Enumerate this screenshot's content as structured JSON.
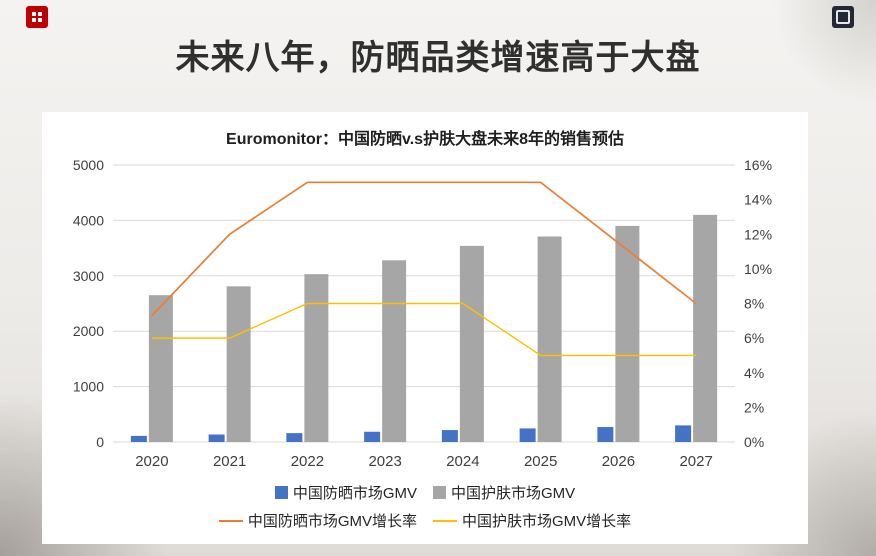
{
  "page": {
    "title": "未来八年，防晒品类增速高于大盘"
  },
  "logos": {
    "top_left_icon": "red-grid-logo-icon",
    "top_right_icon": "dark-square-logo-icon"
  },
  "chart_data": {
    "type": "combo-bar-line",
    "title": "Euromonitor：中国防晒v.s护肤大盘未来8年的销售预估",
    "categories": [
      "2020",
      "2021",
      "2022",
      "2023",
      "2024",
      "2025",
      "2026",
      "2027"
    ],
    "left_axis": {
      "min": 0,
      "max": 5000,
      "step": 1000,
      "ticks": [
        "0",
        "1000",
        "2000",
        "3000",
        "4000",
        "5000"
      ]
    },
    "right_axis": {
      "min": 0,
      "max": 16,
      "step": 2,
      "ticks": [
        "0%",
        "2%",
        "4%",
        "6%",
        "8%",
        "10%",
        "12%",
        "14%",
        "16%"
      ]
    },
    "bar_series": [
      {
        "name": "中国防晒市场GMV",
        "color": "#4472C4",
        "axis": "left",
        "values": [
          110,
          135,
          160,
          185,
          215,
          245,
          270,
          300
        ]
      },
      {
        "name": "中国护肤市场GMV",
        "color": "#A6A6A6",
        "axis": "left",
        "values": [
          2650,
          2810,
          3030,
          3280,
          3540,
          3710,
          3900,
          4100
        ]
      }
    ],
    "line_series": [
      {
        "name": "中国防晒市场GMV增长率",
        "color": "#ED7D31",
        "axis": "right",
        "values": [
          7.3,
          12,
          15,
          15,
          15,
          15,
          11.5,
          8
        ]
      },
      {
        "name": "中国护肤市场GMV增长率",
        "color": "#FFC000",
        "axis": "right",
        "values": [
          6,
          6,
          8,
          8,
          8,
          5,
          5,
          5
        ]
      }
    ],
    "legend_position": "bottom",
    "grid": "horizontal"
  }
}
